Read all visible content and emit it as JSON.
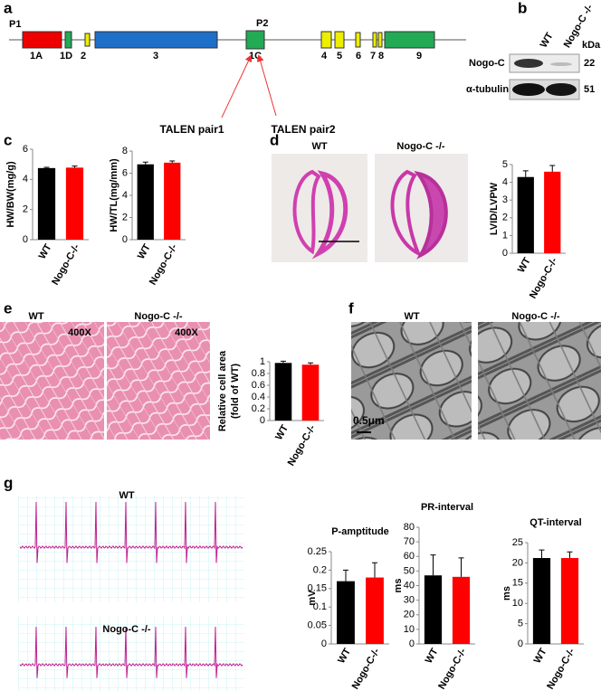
{
  "panel_labels": [
    "a",
    "b",
    "c",
    "d",
    "e",
    "f",
    "g"
  ],
  "gene": {
    "promoters": [
      "P1",
      "P2"
    ],
    "exons": [
      "1A",
      "1D",
      "2",
      "3",
      "1C",
      "4",
      "5",
      "6",
      "7",
      "8",
      "9"
    ],
    "talens": [
      "TALEN pair1",
      "TALEN pair2"
    ]
  },
  "blot": {
    "lanes": [
      "WT",
      "Nogo-C -/-"
    ],
    "unit": "kDa",
    "rows": [
      [
        "Nogo-C",
        "22"
      ],
      [
        "α-tubulin",
        "51"
      ]
    ]
  },
  "histology": {
    "d": [
      "WT",
      "Nogo-C -/-"
    ],
    "e": [
      "WT",
      "Nogo-C -/-"
    ],
    "magnification": [
      "400X",
      "400X"
    ],
    "f": [
      "WT",
      "Nogo-C -/-"
    ],
    "scale": "0.5μm",
    "g": [
      "WT",
      "Nogo-C -/-"
    ]
  },
  "chart_data": [
    {
      "type": "bar",
      "ylabel": [
        "HW/BW(mg/g)"
      ],
      "categories": [
        "WT",
        "Nogo-C-/-"
      ],
      "values": [
        4.75,
        4.78
      ],
      "errors": [
        0.05,
        0.1
      ],
      "colors": [
        "#000000",
        "#ff0000"
      ],
      "ylim": [
        0,
        6
      ],
      "yticks": [
        0,
        2,
        4,
        6
      ]
    },
    {
      "type": "bar",
      "ylabel": [
        "HW/TL(mg/mm)"
      ],
      "categories": [
        "WT",
        "Nogo-C-/-"
      ],
      "values": [
        6.8,
        6.95
      ],
      "errors": [
        0.2,
        0.15
      ],
      "colors": [
        "#000000",
        "#ff0000"
      ],
      "ylim": [
        0,
        8
      ],
      "yticks": [
        0,
        2,
        4,
        6,
        8
      ]
    },
    {
      "type": "bar",
      "ylabel": [
        "LVID/LVPW"
      ],
      "categories": [
        "WT",
        "Nogo-C-/-"
      ],
      "values": [
        4.3,
        4.6
      ],
      "errors": [
        0.35,
        0.35
      ],
      "colors": [
        "#000000",
        "#ff0000"
      ],
      "ylim": [
        0,
        5
      ],
      "yticks": [
        0,
        1,
        2,
        3,
        4,
        5
      ]
    },
    {
      "type": "bar",
      "ylabel": [
        "Relative cell area",
        "(fold of WT)"
      ],
      "categories": [
        "WT",
        "Nogo-C-/-"
      ],
      "values": [
        0.98,
        0.95
      ],
      "errors": [
        0.03,
        0.03
      ],
      "colors": [
        "#000000",
        "#ff0000"
      ],
      "ylim": [
        0,
        1
      ],
      "yticks": [
        0,
        0.2,
        0.4,
        0.6,
        0.8,
        1
      ]
    },
    {
      "type": "bar",
      "title": "P-amptitude",
      "ylabel": [
        "mV"
      ],
      "categories": [
        "WT",
        "Nogo-C-/-"
      ],
      "values": [
        0.17,
        0.18
      ],
      "errors": [
        0.03,
        0.04
      ],
      "colors": [
        "#000000",
        "#ff0000"
      ],
      "ylim": [
        0,
        0.25
      ],
      "yticks": [
        0,
        0.05,
        0.1,
        0.15,
        0.2,
        0.25
      ]
    },
    {
      "type": "bar",
      "title": "PR-interval",
      "ylabel": [
        "ms"
      ],
      "categories": [
        "WT",
        "Nogo-C-/-"
      ],
      "values": [
        47,
        46
      ],
      "errors": [
        14,
        13
      ],
      "colors": [
        "#000000",
        "#ff0000"
      ],
      "ylim": [
        0,
        80
      ],
      "yticks": [
        0,
        10,
        20,
        30,
        40,
        50,
        60,
        70,
        80
      ]
    },
    {
      "type": "bar",
      "title": "QT-interval",
      "ylabel": [
        "ms"
      ],
      "categories": [
        "WT",
        "Nogo-C-/-"
      ],
      "values": [
        21.2,
        21.2
      ],
      "errors": [
        2,
        1.5
      ],
      "colors": [
        "#000000",
        "#ff0000"
      ],
      "ylim": [
        0,
        25
      ],
      "yticks": [
        0,
        5,
        10,
        15,
        20,
        25
      ]
    }
  ]
}
